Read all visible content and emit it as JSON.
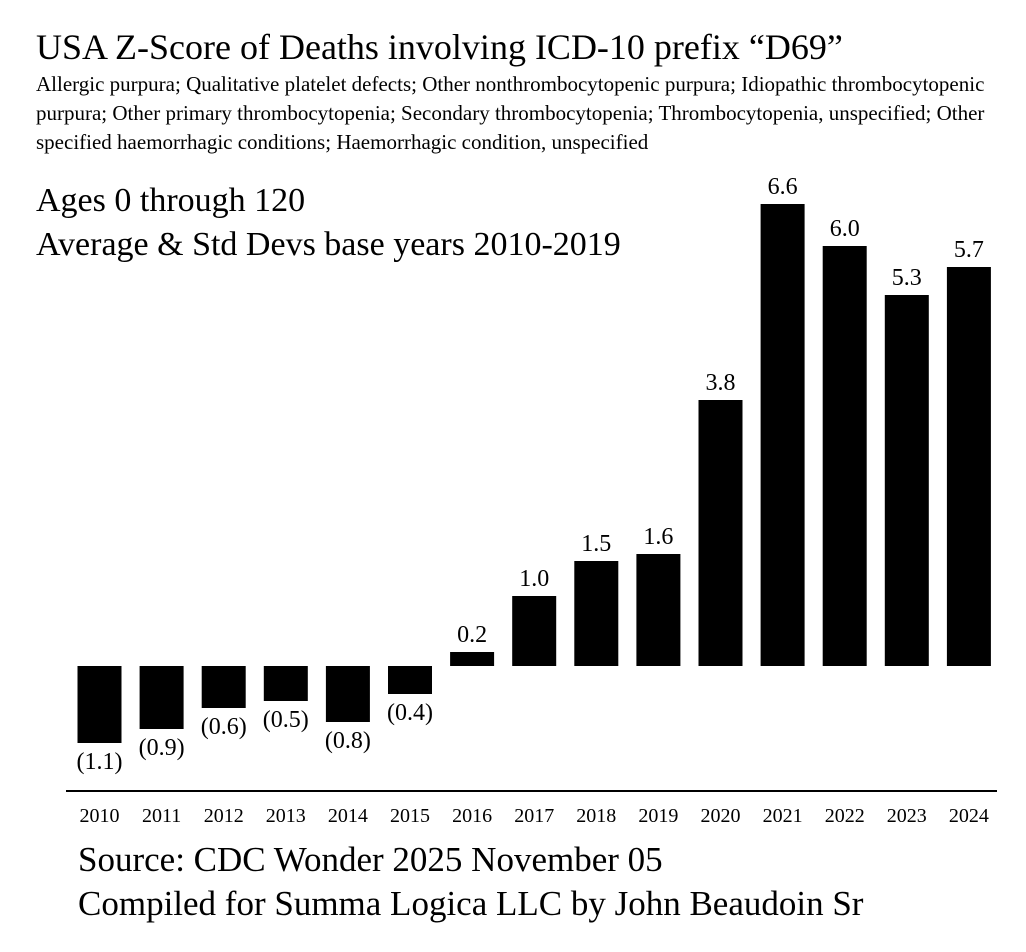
{
  "chart_data": {
    "type": "bar",
    "title": "USA Z-Score of Deaths involving ICD-10 prefix “D69”",
    "subtitle": "Allergic purpura; Qualitative platelet defects; Other nonthrombocytopenic purpura; Idiopathic thrombocytopenic purpura; Other primary thrombocytopenia; Secondary thrombocytopenia; Thrombocytopenia, unspecified; Other specified haemorrhagic conditions; Haemorrhagic condition, unspecified",
    "annotations": [
      "Ages 0 through 120",
      "Average & Std Devs base years 2010-2019"
    ],
    "categories": [
      "2010",
      "2011",
      "2012",
      "2013",
      "2014",
      "2015",
      "2016",
      "2017",
      "2018",
      "2019",
      "2020",
      "2021",
      "2022",
      "2023",
      "2024"
    ],
    "values": [
      -1.1,
      -0.9,
      -0.6,
      -0.5,
      -0.8,
      -0.4,
      0.2,
      1.0,
      1.5,
      1.6,
      3.8,
      6.6,
      6.0,
      5.3,
      5.7
    ],
    "labels": [
      "(1.1)",
      "(0.9)",
      "(0.6)",
      "(0.5)",
      "(0.8)",
      "(0.4)",
      "0.2",
      "1.0",
      "1.5",
      "1.6",
      "3.8",
      "6.6",
      "6.0",
      "5.3",
      "5.7"
    ],
    "bar_color": "#000000",
    "xlabel": "",
    "ylabel": "",
    "grid": false
  },
  "footer": {
    "source": "Source: CDC Wonder 2025 November 05",
    "compiled": "Compiled for Summa Logica LLC by John Beaudoin Sr"
  }
}
